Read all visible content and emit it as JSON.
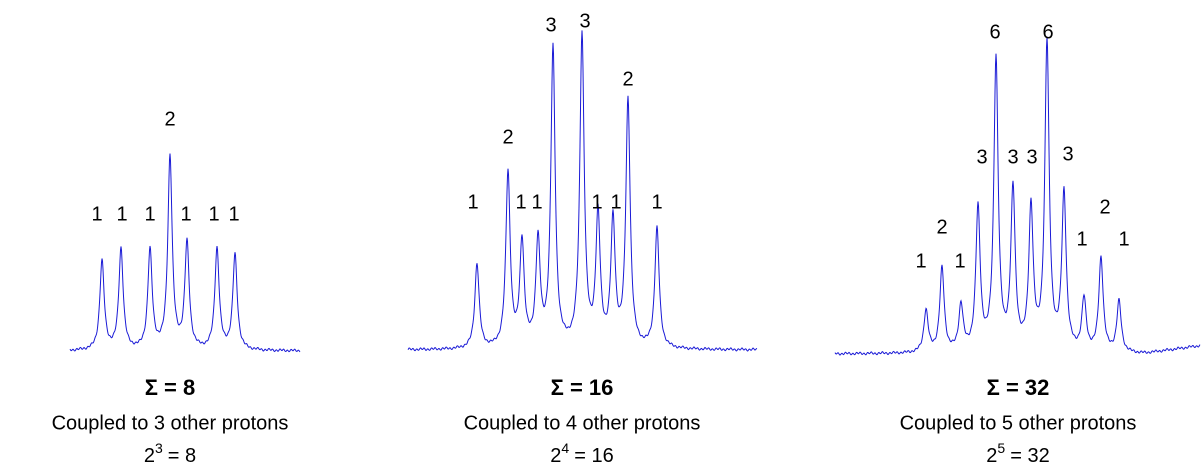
{
  "panels": [
    {
      "peaks": [
        1,
        1,
        1,
        2,
        1,
        1,
        1
      ],
      "sum_label": "Σ = 8",
      "caption": "Coupled to 3 other protons",
      "formula": {
        "base": "2",
        "exponent": "3",
        "result": "= 8"
      }
    },
    {
      "peaks": [
        1,
        2,
        1,
        1,
        3,
        3,
        1,
        1,
        2,
        1
      ],
      "sum_label": "Σ = 16",
      "caption": "Coupled to 4 other protons",
      "formula": {
        "base": "2",
        "exponent": "4",
        "result": "= 16"
      }
    },
    {
      "peaks": [
        1,
        2,
        1,
        3,
        6,
        3,
        3,
        6,
        3,
        1,
        2,
        1
      ],
      "sum_label": "Σ = 32",
      "caption": "Coupled to 5 other protons",
      "formula": {
        "base": "2",
        "exponent": "5",
        "result": "= 32"
      }
    }
  ]
}
